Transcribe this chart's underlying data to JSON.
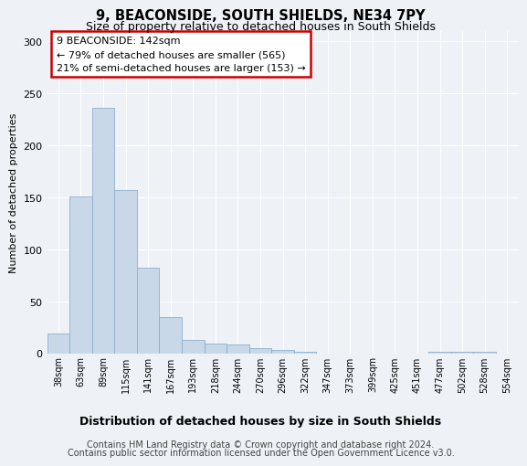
{
  "title": "9, BEACONSIDE, SOUTH SHIELDS, NE34 7PY",
  "subtitle": "Size of property relative to detached houses in South Shields",
  "xlabel": "Distribution of detached houses by size in South Shields",
  "ylabel": "Number of detached properties",
  "categories": [
    "38sqm",
    "63sqm",
    "89sqm",
    "115sqm",
    "141sqm",
    "167sqm",
    "193sqm",
    "218sqm",
    "244sqm",
    "270sqm",
    "296sqm",
    "322sqm",
    "347sqm",
    "373sqm",
    "399sqm",
    "425sqm",
    "451sqm",
    "477sqm",
    "502sqm",
    "528sqm",
    "554sqm"
  ],
  "values": [
    19,
    151,
    236,
    157,
    82,
    35,
    13,
    9,
    8,
    5,
    3,
    1,
    0,
    0,
    0,
    0,
    0,
    1,
    1,
    1,
    0
  ],
  "bar_color": "#c8d8e8",
  "bar_edge_color": "#8ab0cc",
  "annotation_box_text": "9 BEACONSIDE: 142sqm\n← 79% of detached houses are smaller (565)\n21% of semi-detached houses are larger (153) →",
  "annotation_box_color": "#ffffff",
  "annotation_box_edge_color": "#cc0000",
  "footer_line1": "Contains HM Land Registry data © Crown copyright and database right 2024.",
  "footer_line2": "Contains public sector information licensed under the Open Government Licence v3.0.",
  "ylim": [
    0,
    310
  ],
  "yticks": [
    0,
    50,
    100,
    150,
    200,
    250,
    300
  ],
  "background_color": "#eef2f7",
  "grid_color": "#ffffff",
  "title_fontsize": 10.5,
  "subtitle_fontsize": 9,
  "ylabel_fontsize": 8,
  "xlabel_fontsize": 9,
  "tick_fontsize": 7,
  "footer_fontsize": 7,
  "annotation_fontsize": 8
}
